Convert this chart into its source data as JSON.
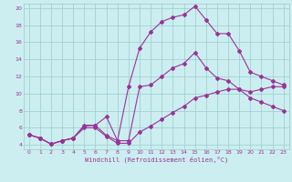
{
  "xlabel": "Windchill (Refroidissement éolien,°C)",
  "bg_color": "#cceef0",
  "grid_color": "#99cccc",
  "line_color": "#993399",
  "xlim": [
    -0.5,
    23.5
  ],
  "ylim": [
    3.5,
    20.5
  ],
  "xticks": [
    0,
    1,
    2,
    3,
    4,
    5,
    6,
    7,
    8,
    9,
    10,
    11,
    12,
    13,
    14,
    15,
    16,
    17,
    18,
    19,
    20,
    21,
    22,
    23
  ],
  "yticks": [
    4,
    6,
    8,
    10,
    12,
    14,
    16,
    18,
    20
  ],
  "line1_x": [
    0,
    1,
    2,
    3,
    4,
    5,
    6,
    7,
    8,
    9,
    10,
    11,
    12,
    13,
    14,
    15,
    16,
    17,
    18,
    19,
    20,
    21,
    22,
    23
  ],
  "line1_y": [
    5.2,
    4.8,
    4.1,
    4.5,
    4.8,
    6.3,
    6.3,
    5.1,
    4.5,
    10.8,
    15.3,
    17.2,
    18.4,
    18.9,
    19.2,
    20.2,
    18.6,
    17.0,
    17.0,
    15.0,
    12.5,
    12.0,
    11.5,
    11.0
  ],
  "line2_x": [
    0,
    1,
    2,
    3,
    4,
    5,
    6,
    7,
    8,
    9,
    10,
    11,
    12,
    13,
    14,
    15,
    16,
    17,
    18,
    19,
    20,
    21,
    22,
    23
  ],
  "line2_y": [
    5.2,
    4.8,
    4.1,
    4.5,
    4.8,
    6.2,
    6.3,
    7.3,
    4.5,
    4.5,
    10.8,
    11.0,
    12.0,
    13.0,
    13.5,
    14.8,
    13.0,
    11.8,
    11.5,
    10.5,
    9.5,
    9.0,
    8.5,
    8.0
  ],
  "line3_x": [
    0,
    1,
    2,
    3,
    4,
    5,
    6,
    7,
    8,
    9,
    10,
    11,
    12,
    13,
    14,
    15,
    16,
    17,
    18,
    19,
    20,
    21,
    22,
    23
  ],
  "line3_y": [
    5.2,
    4.8,
    4.1,
    4.5,
    4.8,
    6.0,
    6.0,
    5.0,
    4.2,
    4.2,
    5.5,
    6.2,
    7.0,
    7.8,
    8.5,
    9.5,
    9.8,
    10.2,
    10.5,
    10.5,
    10.2,
    10.5,
    10.8,
    10.8
  ]
}
